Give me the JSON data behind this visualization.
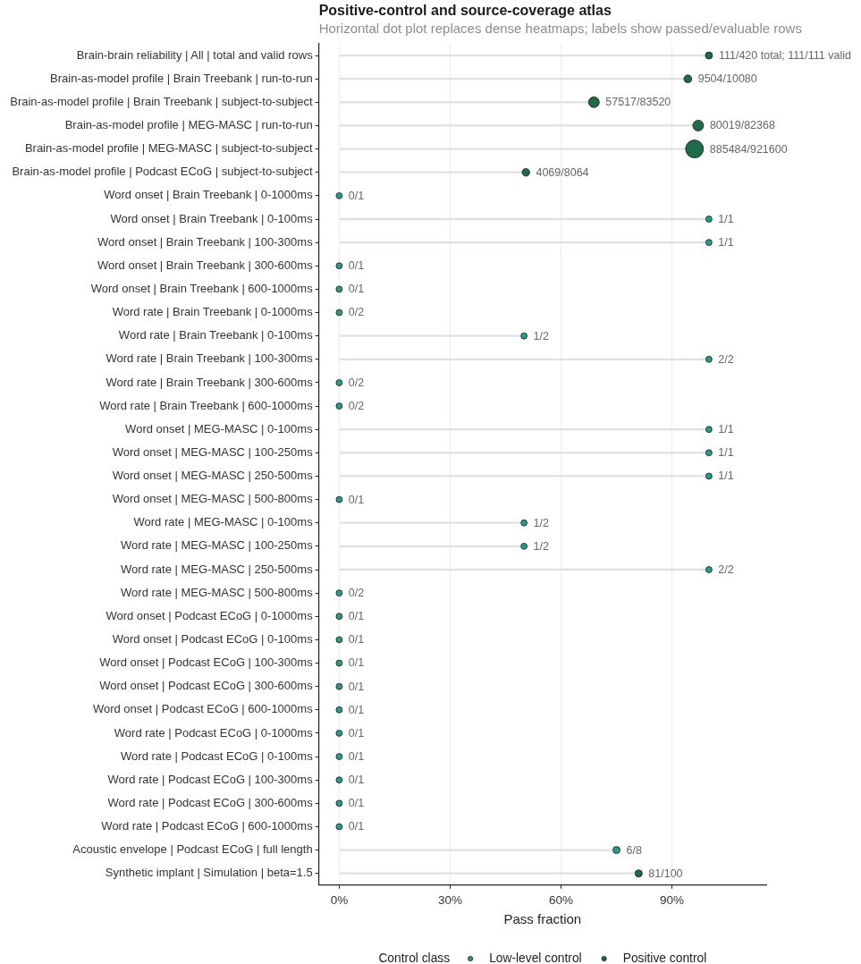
{
  "chart_data": {
    "type": "lollipop",
    "orientation": "horizontal",
    "title": "Positive-control and source-coverage atlas",
    "subtitle": "Horizontal dot plot replaces dense heatmaps; labels show passed/evaluable rows",
    "xlabel": "Pass fraction",
    "legend_title": "Control class",
    "categories": [
      "Brain-brain reliability | All | total and valid rows",
      "Brain-as-model profile | Brain Treebank | run-to-run",
      "Brain-as-model profile | Brain Treebank | subject-to-subject",
      "Brain-as-model profile | MEG-MASC | run-to-run",
      "Brain-as-model profile | MEG-MASC | subject-to-subject",
      "Brain-as-model profile | Podcast ECoG | subject-to-subject",
      "Word onset | Brain Treebank | 0-1000ms",
      "Word onset | Brain Treebank | 0-100ms",
      "Word onset | Brain Treebank | 100-300ms",
      "Word onset | Brain Treebank | 300-600ms",
      "Word onset | Brain Treebank | 600-1000ms",
      "Word rate | Brain Treebank | 0-1000ms",
      "Word rate | Brain Treebank | 0-100ms",
      "Word rate | Brain Treebank | 100-300ms",
      "Word rate | Brain Treebank | 300-600ms",
      "Word rate | Brain Treebank | 600-1000ms",
      "Word onset | MEG-MASC | 0-100ms",
      "Word onset | MEG-MASC | 100-250ms",
      "Word onset | MEG-MASC | 250-500ms",
      "Word onset | MEG-MASC | 500-800ms",
      "Word rate | MEG-MASC | 0-100ms",
      "Word rate | MEG-MASC | 100-250ms",
      "Word rate | MEG-MASC | 250-500ms",
      "Word rate | MEG-MASC | 500-800ms",
      "Word onset | Podcast ECoG | 0-1000ms",
      "Word onset | Podcast ECoG | 0-100ms",
      "Word onset | Podcast ECoG | 100-300ms",
      "Word onset | Podcast ECoG | 300-600ms",
      "Word onset | Podcast ECoG | 600-1000ms",
      "Word rate | Podcast ECoG | 0-1000ms",
      "Word rate | Podcast ECoG | 0-100ms",
      "Word rate | Podcast ECoG | 100-300ms",
      "Word rate | Podcast ECoG | 300-600ms",
      "Word rate | Podcast ECoG | 600-1000ms",
      "Acoustic envelope | Podcast ECoG | full length",
      "Synthetic implant | Simulation | beta=1.5"
    ],
    "series": [
      {
        "name": "Low-level control",
        "color": "#2a9a8b",
        "values": [
          null,
          null,
          null,
          null,
          null,
          null,
          0,
          1,
          1,
          0,
          0,
          0,
          0.5,
          1,
          0,
          0,
          1,
          1,
          1,
          0,
          0.5,
          0.5,
          1,
          0,
          0,
          0,
          0,
          0,
          0,
          0,
          0,
          0,
          0,
          0,
          0.75,
          null
        ],
        "sizes": [
          null,
          null,
          null,
          null,
          null,
          null,
          0.12,
          0.12,
          0.12,
          0.12,
          0.12,
          0.12,
          0.12,
          0.12,
          0.12,
          0.12,
          0.12,
          0.12,
          0.12,
          0.12,
          0.12,
          0.12,
          0.12,
          0.12,
          0.12,
          0.12,
          0.12,
          0.12,
          0.12,
          0.12,
          0.12,
          0.12,
          0.12,
          0.12,
          0.16,
          null
        ],
        "value_labels": [
          null,
          null,
          null,
          null,
          null,
          null,
          "0/1",
          "1/1",
          "1/1",
          "0/1",
          "0/1",
          "0/2",
          "1/2",
          "2/2",
          "0/2",
          "0/2",
          "1/1",
          "1/1",
          "1/1",
          "0/1",
          "1/2",
          "1/2",
          "2/2",
          "0/2",
          "0/1",
          "0/1",
          "0/1",
          "0/1",
          "0/1",
          "0/1",
          "0/1",
          "0/1",
          "0/1",
          "0/1",
          "6/8",
          null
        ]
      },
      {
        "name": "Positive control",
        "color": "#1f6a47",
        "values": [
          1,
          0.943,
          0.689,
          0.971,
          0.961,
          0.505,
          null,
          null,
          null,
          null,
          null,
          null,
          null,
          null,
          null,
          null,
          null,
          null,
          null,
          null,
          null,
          null,
          null,
          null,
          null,
          null,
          null,
          null,
          null,
          null,
          null,
          null,
          null,
          null,
          null,
          0.81
        ],
        "sizes": [
          0.16,
          0.19,
          0.36,
          0.36,
          1,
          0.18,
          null,
          null,
          null,
          null,
          null,
          null,
          null,
          null,
          null,
          null,
          null,
          null,
          null,
          null,
          null,
          null,
          null,
          null,
          null,
          null,
          null,
          null,
          null,
          null,
          null,
          null,
          null,
          null,
          null,
          0.16
        ],
        "value_labels": [
          "111/420 total; 111/111 valid",
          "9504/10080",
          "57517/83520",
          "80019/82368",
          "885484/921600",
          "4069/8064",
          null,
          null,
          null,
          null,
          null,
          null,
          null,
          null,
          null,
          null,
          null,
          null,
          null,
          null,
          null,
          null,
          null,
          null,
          null,
          null,
          null,
          null,
          null,
          null,
          null,
          null,
          null,
          null,
          null,
          "81/100"
        ]
      }
    ],
    "xlim": [
      -0.055,
      1.155
    ],
    "xticks": [
      {
        "value": 0,
        "label": "0%"
      },
      {
        "value": 0.3,
        "label": "30%"
      },
      {
        "value": 0.6,
        "label": "60%"
      },
      {
        "value": 0.9,
        "label": "90%"
      }
    ],
    "grid": "x",
    "legend": "bottom",
    "marker": "circle"
  }
}
